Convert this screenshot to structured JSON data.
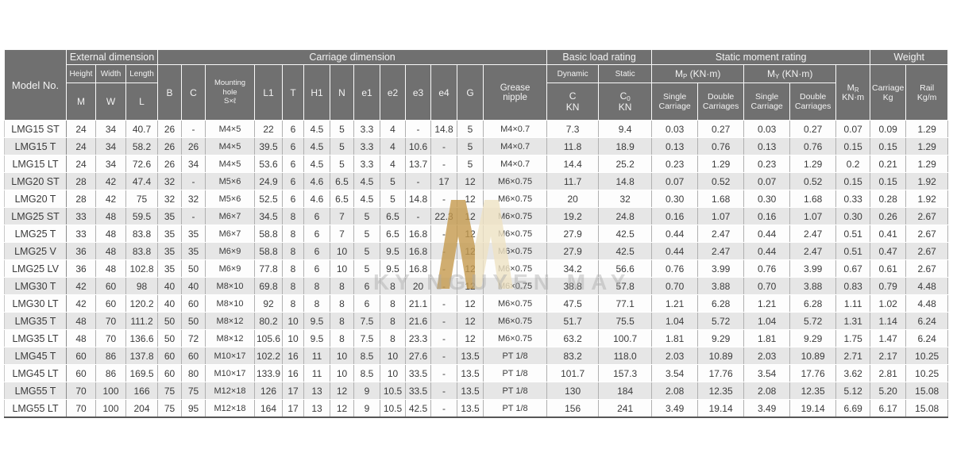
{
  "watermark": {
    "text": "KY NGUYEN MAY",
    "logo_gold": "#c59a4e",
    "logo_cream": "#efe3c4"
  },
  "colors": {
    "header_bg": "#707070",
    "header_text": "#f2f2f2",
    "row_bg": "#fdfdfd",
    "row_alt_bg": "#e6e6e6",
    "body_text": "#3b3b3b",
    "grid_line": "#b0b0b0"
  },
  "table": {
    "groups": {
      "model_no": "Model No.",
      "external": "External dimension",
      "carriage": "Carriage dimension",
      "basic_load": "Basic load rating",
      "static_moment": "Static moment rating",
      "weight": "Weight"
    },
    "sub": {
      "height": "Height",
      "width": "Width",
      "length": "Length",
      "m": "M",
      "w": "W",
      "l": "L",
      "b": "B",
      "c": "C",
      "mounting_hole": "Mounting\nhole\nS×ℓ",
      "l1": "L1",
      "t": "T",
      "h1": "H1",
      "n": "N",
      "e1": "e1",
      "e2": "e2",
      "e3": "e3",
      "e4": "e4",
      "g": "G",
      "grease_nipple": "Grease\nnipple",
      "dynamic": "Dynamic",
      "static": "Static",
      "c_dyn": {
        "letter": "C",
        "unit": "KN"
      },
      "c0": {
        "letter": "C",
        "sub": "0",
        "unit": "KN"
      },
      "mp": {
        "letter": "M",
        "sub": "P",
        "unit": "(KN·m)"
      },
      "my": {
        "letter": "M",
        "sub": "Y",
        "unit": "(KN·m)"
      },
      "mr": {
        "letter": "M",
        "sub": "R",
        "unit": "KN·m"
      },
      "single_carriage": "Single\nCarriage",
      "double_carriages": "Double\nCarriages",
      "carriage_kg": "Carriage\nKg",
      "rail_kg_m": "Rail\nKg/m"
    },
    "col_keys": [
      "model",
      "M",
      "W",
      "L",
      "B",
      "C",
      "mounting_hole",
      "L1",
      "T",
      "H1",
      "N",
      "e1",
      "e2",
      "e3",
      "e4",
      "G",
      "grease_nipple",
      "C_dynamic",
      "C0_static",
      "Mp_single",
      "Mp_double",
      "My_single",
      "My_double",
      "Mr",
      "carriage_kg",
      "rail_kg_m"
    ],
    "rows": [
      [
        "LMG15 ST",
        "24",
        "34",
        "40.7",
        "26",
        "-",
        "M4×5",
        "22",
        "6",
        "4.5",
        "5",
        "3.3",
        "4",
        "-",
        "14.8",
        "5",
        "M4×0.7",
        "7.3",
        "9.4",
        "0.03",
        "0.27",
        "0.03",
        "0.27",
        "0.07",
        "0.09",
        "1.29"
      ],
      [
        "LMG15 T",
        "24",
        "34",
        "58.2",
        "26",
        "26",
        "M4×5",
        "39.5",
        "6",
        "4.5",
        "5",
        "3.3",
        "4",
        "10.6",
        "-",
        "5",
        "M4×0.7",
        "11.8",
        "18.9",
        "0.13",
        "0.76",
        "0.13",
        "0.76",
        "0.15",
        "0.15",
        "1.29"
      ],
      [
        "LMG15 LT",
        "24",
        "34",
        "72.6",
        "26",
        "34",
        "M4×5",
        "53.6",
        "6",
        "4.5",
        "5",
        "3.3",
        "4",
        "13.7",
        "-",
        "5",
        "M4×0.7",
        "14.4",
        "25.2",
        "0.23",
        "1.29",
        "0.23",
        "1.29",
        "0.2",
        "0.21",
        "1.29"
      ],
      [
        "LMG20 ST",
        "28",
        "42",
        "47.4",
        "32",
        "-",
        "M5×6",
        "24.9",
        "6",
        "4.6",
        "6.5",
        "4.5",
        "5",
        "-",
        "17",
        "12",
        "M6×0.75",
        "11.7",
        "14.8",
        "0.07",
        "0.52",
        "0.07",
        "0.52",
        "0.15",
        "0.15",
        "1.92"
      ],
      [
        "LMG20 T",
        "28",
        "42",
        "75",
        "32",
        "32",
        "M5×6",
        "52.5",
        "6",
        "4.6",
        "6.5",
        "4.5",
        "5",
        "14.8",
        "-",
        "12",
        "M6×0.75",
        "20",
        "32",
        "0.30",
        "1.68",
        "0.30",
        "1.68",
        "0.33",
        "0.28",
        "1.92"
      ],
      [
        "LMG25 ST",
        "33",
        "48",
        "59.5",
        "35",
        "-",
        "M6×7",
        "34.5",
        "8",
        "6",
        "7",
        "5",
        "6.5",
        "-",
        "22.3",
        "12",
        "M6×0.75",
        "19.2",
        "24.8",
        "0.16",
        "1.07",
        "0.16",
        "1.07",
        "0.30",
        "0.26",
        "2.67"
      ],
      [
        "LMG25 T",
        "33",
        "48",
        "83.8",
        "35",
        "35",
        "M6×7",
        "58.8",
        "8",
        "6",
        "7",
        "5",
        "6.5",
        "16.8",
        "-",
        "12",
        "M6×0.75",
        "27.9",
        "42.5",
        "0.44",
        "2.47",
        "0.44",
        "2.47",
        "0.51",
        "0.41",
        "2.67"
      ],
      [
        "LMG25 V",
        "36",
        "48",
        "83.8",
        "35",
        "35",
        "M6×9",
        "58.8",
        "8",
        "6",
        "10",
        "5",
        "9.5",
        "16.8",
        "-",
        "12",
        "M6×0.75",
        "27.9",
        "42.5",
        "0.44",
        "2.47",
        "0.44",
        "2.47",
        "0.51",
        "0.47",
        "2.67"
      ],
      [
        "LMG25 LV",
        "36",
        "48",
        "102.8",
        "35",
        "50",
        "M6×9",
        "77.8",
        "8",
        "6",
        "10",
        "5",
        "9.5",
        "16.8",
        "-",
        "12",
        "M6×0.75",
        "34.2",
        "56.6",
        "0.76",
        "3.99",
        "0.76",
        "3.99",
        "0.67",
        "0.61",
        "2.67"
      ],
      [
        "LMG30 T",
        "42",
        "60",
        "98",
        "40",
        "40",
        "M8×10",
        "69.8",
        "8",
        "8",
        "8",
        "6",
        "8",
        "20",
        "-",
        "12",
        "M6×0.75",
        "38.8",
        "57.8",
        "0.70",
        "3.88",
        "0.70",
        "3.88",
        "0.83",
        "0.79",
        "4.48"
      ],
      [
        "LMG30 LT",
        "42",
        "60",
        "120.2",
        "40",
        "60",
        "M8×10",
        "92",
        "8",
        "8",
        "8",
        "6",
        "8",
        "21.1",
        "-",
        "12",
        "M6×0.75",
        "47.5",
        "77.1",
        "1.21",
        "6.28",
        "1.21",
        "6.28",
        "1.11",
        "1.02",
        "4.48"
      ],
      [
        "LMG35 T",
        "48",
        "70",
        "111.2",
        "50",
        "50",
        "M8×12",
        "80.2",
        "10",
        "9.5",
        "8",
        "7.5",
        "8",
        "21.6",
        "-",
        "12",
        "M6×0.75",
        "51.7",
        "75.5",
        "1.04",
        "5.72",
        "1.04",
        "5.72",
        "1.31",
        "1.14",
        "6.24"
      ],
      [
        "LMG35 LT",
        "48",
        "70",
        "136.6",
        "50",
        "72",
        "M8×12",
        "105.6",
        "10",
        "9.5",
        "8",
        "7.5",
        "8",
        "23.3",
        "-",
        "12",
        "M6×0.75",
        "63.2",
        "100.7",
        "1.81",
        "9.29",
        "1.81",
        "9.29",
        "1.75",
        "1.47",
        "6.24"
      ],
      [
        "LMG45 T",
        "60",
        "86",
        "137.8",
        "60",
        "60",
        "M10×17",
        "102.2",
        "16",
        "11",
        "10",
        "8.5",
        "10",
        "27.6",
        "-",
        "13.5",
        "PT 1/8",
        "83.2",
        "118.0",
        "2.03",
        "10.89",
        "2.03",
        "10.89",
        "2.71",
        "2.17",
        "10.25"
      ],
      [
        "LMG45 LT",
        "60",
        "86",
        "169.5",
        "60",
        "80",
        "M10×17",
        "133.9",
        "16",
        "11",
        "10",
        "8.5",
        "10",
        "33.5",
        "-",
        "13.5",
        "PT 1/8",
        "101.7",
        "157.3",
        "3.54",
        "17.76",
        "3.54",
        "17.76",
        "3.62",
        "2.81",
        "10.25"
      ],
      [
        "LMG55 T",
        "70",
        "100",
        "166",
        "75",
        "75",
        "M12×18",
        "126",
        "17",
        "13",
        "12",
        "9",
        "10.5",
        "33.5",
        "-",
        "13.5",
        "PT 1/8",
        "130",
        "184",
        "2.08",
        "12.35",
        "2.08",
        "12.35",
        "5.12",
        "5.20",
        "15.08"
      ],
      [
        "LMG55 LT",
        "70",
        "100",
        "204",
        "75",
        "95",
        "M12×18",
        "164",
        "17",
        "13",
        "12",
        "9",
        "10.5",
        "42.5",
        "-",
        "13.5",
        "PT 1/8",
        "156",
        "241",
        "3.49",
        "19.14",
        "3.49",
        "19.14",
        "6.69",
        "6.17",
        "15.08"
      ]
    ]
  }
}
